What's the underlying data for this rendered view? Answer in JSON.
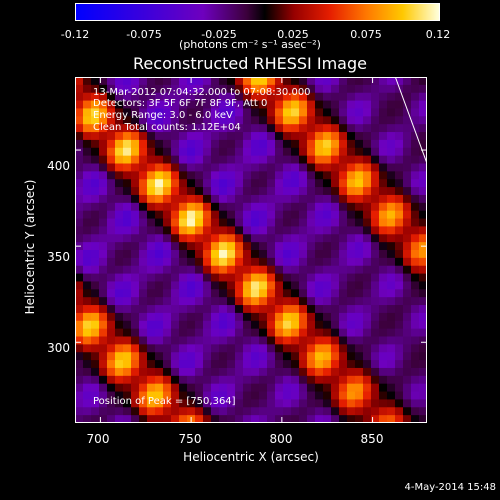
{
  "chart_data": {
    "type": "heatmap",
    "title": "Reconstructed RHESSI Image",
    "colorbar": {
      "ticks": [
        "-0.12",
        "-0.075",
        "-0.025",
        "0.025",
        "0.075",
        "0.12"
      ],
      "unit_label": "(photons cm⁻² s⁻¹ asec⁻²)",
      "range": [
        -0.12,
        0.12
      ]
    },
    "xlabel": "Heliocentric X (arcsec)",
    "ylabel": "Heliocentric Y (arcsec)",
    "xlim": [
      686,
      880
    ],
    "ylim": [
      258,
      438
    ],
    "xticks": [
      "700",
      "750",
      "800",
      "850"
    ],
    "yticks": [
      "300",
      "350",
      "400"
    ],
    "xtick_values": [
      700,
      750,
      800,
      850
    ],
    "ytick_values": [
      300,
      350,
      400
    ],
    "peak": [
      750,
      364
    ],
    "annotations": [
      "13-Mar-2012 07:04:32.000 to 07:08:30.000",
      "Detectors: 3F 5F 6F 7F 8F 9F, Att 0",
      "Energy Range: 3.0 - 6.0 keV",
      "Clean     Total counts: 1.12E+04",
      "Position of Peak = [750,364]"
    ]
  },
  "footer": {
    "date": "4-May-2014 15:48"
  }
}
